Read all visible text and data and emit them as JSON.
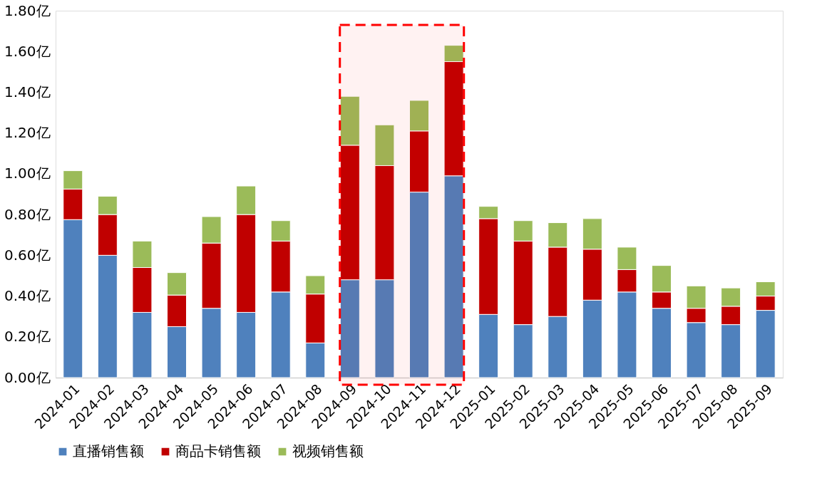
{
  "chart_data": {
    "type": "bar",
    "stacked": true,
    "categories": [
      "2024-01",
      "2024-02",
      "2024-03",
      "2024-04",
      "2024-05",
      "2024-06",
      "2024-07",
      "2024-08",
      "2024-09",
      "2024-10",
      "2024-11",
      "2024-12",
      "2025-01",
      "2025-02",
      "2025-03",
      "2025-04",
      "2025-05",
      "2025-06",
      "2025-07",
      "2025-08",
      "2025-09"
    ],
    "series": [
      {
        "name": "直播销售额",
        "color": "#4f81bd",
        "values": [
          0.775,
          0.6,
          0.32,
          0.25,
          0.34,
          0.32,
          0.42,
          0.17,
          0.48,
          0.48,
          0.91,
          0.99,
          0.31,
          0.26,
          0.3,
          0.38,
          0.42,
          0.34,
          0.27,
          0.26,
          0.33
        ]
      },
      {
        "name": "商品卡销售额",
        "color": "#c00000",
        "values": [
          0.15,
          0.2,
          0.22,
          0.155,
          0.32,
          0.48,
          0.25,
          0.24,
          0.66,
          0.56,
          0.3,
          0.56,
          0.47,
          0.41,
          0.34,
          0.25,
          0.11,
          0.08,
          0.07,
          0.09,
          0.07
        ]
      },
      {
        "name": "视频销售额",
        "color": "#9bbb59",
        "values": [
          0.09,
          0.09,
          0.13,
          0.11,
          0.13,
          0.14,
          0.1,
          0.09,
          0.24,
          0.2,
          0.15,
          0.08,
          0.06,
          0.1,
          0.12,
          0.15,
          0.11,
          0.13,
          0.11,
          0.09,
          0.07
        ]
      }
    ],
    "ylim": [
      0,
      1.8
    ],
    "yticks": [
      {
        "value": 0,
        "label": "0.00亿"
      },
      {
        "value": 0.2,
        "label": "0.20亿"
      },
      {
        "value": 0.4,
        "label": "0.40亿"
      },
      {
        "value": 0.6,
        "label": "0.60亿"
      },
      {
        "value": 0.8,
        "label": "0.80亿"
      },
      {
        "value": 1.0,
        "label": "1.00亿"
      },
      {
        "value": 1.2,
        "label": "1.20亿"
      },
      {
        "value": 1.4,
        "label": "1.40亿"
      },
      {
        "value": 1.6,
        "label": "1.60亿"
      },
      {
        "value": 1.8,
        "label": "1.80亿"
      }
    ],
    "bands": [
      {
        "axis": "x",
        "from": "2024-09",
        "to": "2024-12",
        "color": "#ff0000"
      }
    ],
    "grid": false,
    "legend": "bottom"
  }
}
